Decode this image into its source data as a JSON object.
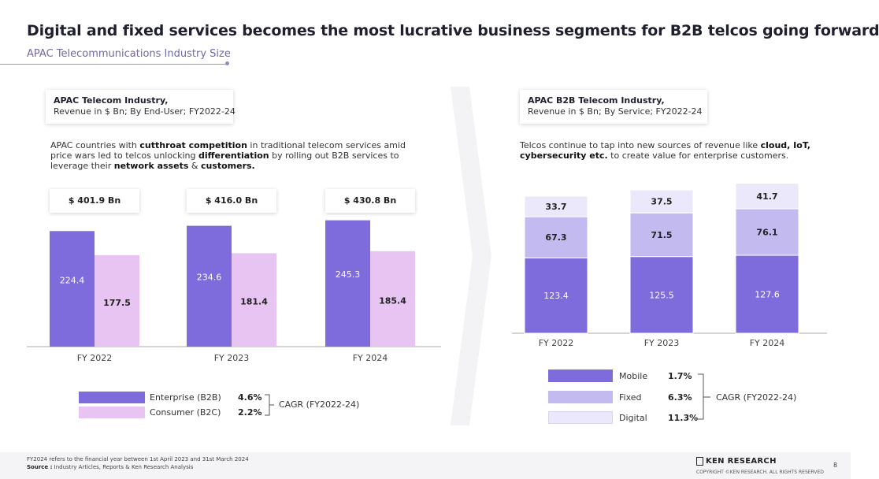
{
  "title": "Digital and fixed services becomes the most lucrative business segments for B2B telcos going forward",
  "subtitle": "APAC Telecommunications Industry Size",
  "colors": {
    "enterprise": "#7e6bdc",
    "consumer": "#e8c4f2",
    "mobile": "#7e6bdc",
    "fixed": "#c3baf0",
    "digital": "#ebe8fb",
    "accent": "#6f6aa8"
  },
  "left": {
    "box_title": "APAC Telecom Industry,",
    "box_subtitle": "Revenue in $ Bn; By End-User; FY2022-24",
    "desc_parts": [
      "APAC countries with ",
      "cutthroat competition",
      " in traditional telecom services amid price wars led to telcos unlocking ",
      "differentiation",
      " by rolling out B2B services to leverage their ",
      "network assets",
      " & ",
      "customers."
    ],
    "totals": [
      "$ 401.9 Bn",
      "$ 416.0 Bn",
      "$ 430.8 Bn"
    ],
    "legend": {
      "enterprise": "Enterprise (B2B)",
      "enterprise_cagr": "4.6%",
      "consumer": "Consumer (B2C)",
      "consumer_cagr": "2.2%",
      "cagr_label": "CAGR (FY2022-24)"
    }
  },
  "right": {
    "box_title": "APAC B2B Telecom Industry,",
    "box_subtitle": "Revenue in $ Bn; By Service; FY2022-24",
    "desc_parts": [
      "Telcos continue to tap into new sources of revenue like ",
      "cloud, IoT, cybersecurity etc.",
      " to create value for enterprise customers."
    ],
    "legend": {
      "mobile": "Mobile",
      "mobile_cagr": "1.7%",
      "fixed": "Fixed",
      "fixed_cagr": "6.3%",
      "digital": "Digital",
      "digital_cagr": "11.3%",
      "cagr_label": "CAGR (FY2022-24)"
    }
  },
  "chart_data": [
    {
      "type": "bar",
      "categories": [
        "FY 2022",
        "FY 2023",
        "FY 2024"
      ],
      "series": [
        {
          "name": "Enterprise (B2B)",
          "values": [
            224.4,
            234.6,
            245.3
          ]
        },
        {
          "name": "Consumer (B2C)",
          "values": [
            177.5,
            181.4,
            185.4
          ]
        }
      ],
      "ylim": [
        0,
        260
      ],
      "grid": false
    },
    {
      "type": "bar",
      "stacked": true,
      "categories": [
        "FY 2022",
        "FY 2023",
        "FY 2024"
      ],
      "series": [
        {
          "name": "Mobile",
          "values": [
            123.4,
            125.5,
            127.6
          ]
        },
        {
          "name": "Fixed",
          "values": [
            67.3,
            71.5,
            76.1
          ]
        },
        {
          "name": "Digital",
          "values": [
            33.7,
            37.5,
            41.7
          ]
        }
      ],
      "ylim": [
        0,
        245
      ],
      "grid": false
    }
  ],
  "footer": {
    "note": "FY2024 refers to the financial year between 1st April 2023 and 31st March 2024",
    "source_label": "Source :",
    "source_text": " Industry Articles, Reports & Ken Research Analysis",
    "logo": "KEN RESEARCH",
    "copyright": "COPYRIGHT ©KEN RESEARCH. ALL RIGHTS RESERVED",
    "page_number": "8"
  }
}
